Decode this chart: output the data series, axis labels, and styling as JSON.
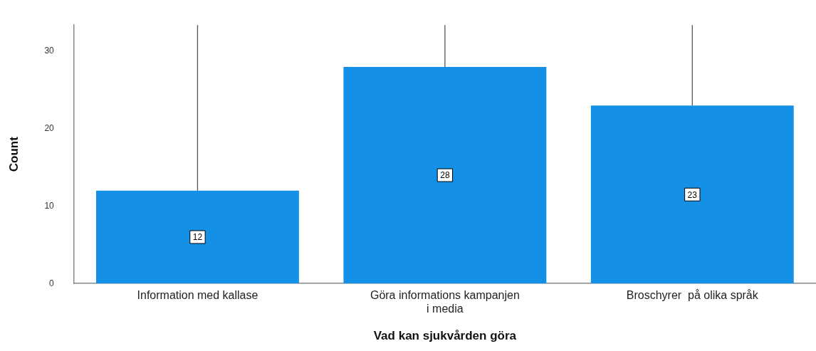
{
  "chart_data": {
    "type": "bar",
    "xlabel": "Vad kan sjukvården göra",
    "ylabel": "Count",
    "categories": [
      "Information med kallase",
      "Göra informations kampanjen\ni media",
      "Broschyrer  på olika språk"
    ],
    "values": [
      12,
      28,
      23
    ],
    "color": "#1490e6",
    "errors": [
      [
        12,
        33.4
      ],
      [
        28,
        33.4
      ],
      [
        23,
        33.4
      ]
    ],
    "ylim": [
      0,
      33.4
    ],
    "yticks": [
      0,
      10,
      20,
      30
    ],
    "grid": false,
    "legend": false,
    "data_labels": true
  }
}
